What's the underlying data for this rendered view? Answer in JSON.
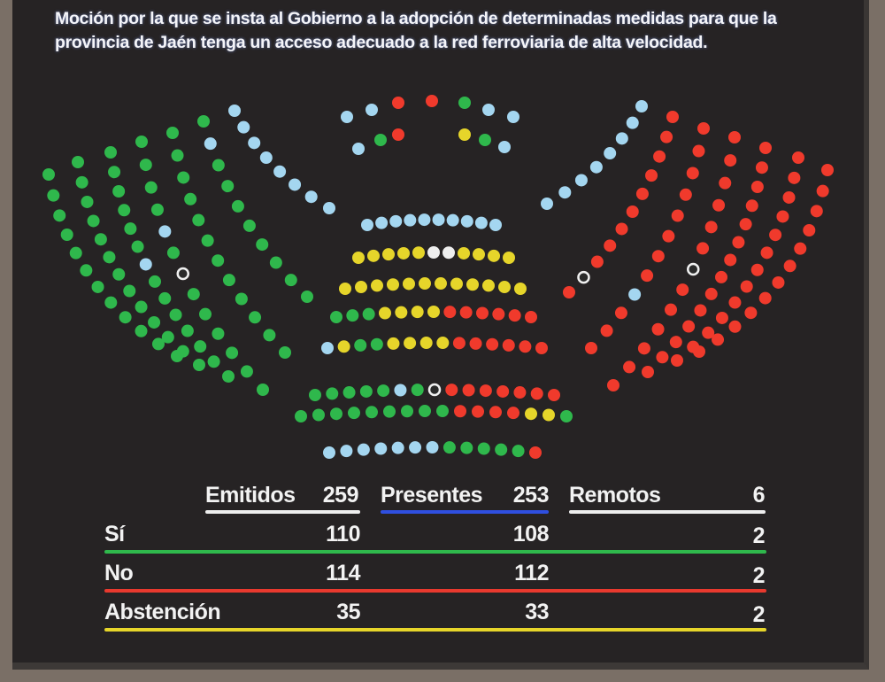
{
  "title": "Moción por la que se insta al Gobierno a la adopción de determinadas medidas para que la provincia de Jaén tenga un acceso adecuado a la red ferroviaria de alta velocidad.",
  "colors": {
    "G": "#2fb84c",
    "R": "#f03a2c",
    "Y": "#e6d52a",
    "B": "#a4d6f0",
    "W": "#eeeeee",
    "ring": "#f0f0f0",
    "presentes_line": "#2f4fe0"
  },
  "seats": {
    "top": [
      "BBRRGBB",
      "BGRYGB"
    ],
    "left_wing": [
      "GGGGGGGGGGGG",
      "GGGGGGGGGGGGG",
      "GGGGGGBGGGGGGG",
      "GGGGBGwGGGGGG",
      "GGGGGGGGGGGG",
      "GBGGGGGGGG",
      "BBBBBBBB"
    ],
    "right_wing": [
      "RRRRRRRRRRRR",
      "RRRRRRRRRRRRR",
      "RRRRRRRRRRRRRR",
      "RRRRRRwRRRRRR",
      "RRRRRRRRBRRR",
      "RRRRRRRRRwR",
      "BBBBBBBB"
    ],
    "center": [
      "BBBBBBBBBB",
      "YYYYYWWYYYY",
      "YYYYYYYYYYYY",
      "GGGYYYYRRRRRR",
      "BYGGYYYYRRRRRR",
      "GGGGGBGwRRRRRRR",
      "GGGGGGGGGRRRRYYG",
      "BBBBBBBGGGGGR"
    ]
  },
  "summary": {
    "headers": [
      {
        "label": "Emitidos",
        "value": "259"
      },
      {
        "label": "Presentes",
        "value": "253"
      },
      {
        "label": "Remotos",
        "value": "6"
      }
    ],
    "rows": [
      {
        "label": "Sí",
        "emitidos": "110",
        "presentes": "108",
        "remotos": "2",
        "color": "#2fb84c"
      },
      {
        "label": "No",
        "emitidos": "114",
        "presentes": "112",
        "remotos": "2",
        "color": "#e8392e"
      },
      {
        "label": "Abstención",
        "emitidos": "35",
        "presentes": "33",
        "remotos": "2",
        "color": "#e6d52a"
      }
    ]
  }
}
